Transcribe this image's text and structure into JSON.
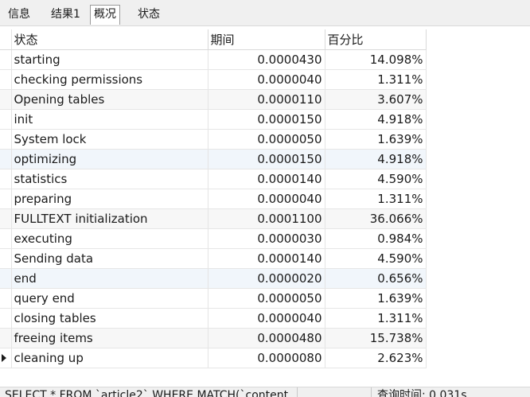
{
  "tabs": [
    {
      "label": "信息",
      "active": false
    },
    {
      "label": "结果1",
      "active": false
    },
    {
      "label": "概况",
      "active": true
    },
    {
      "label": "状态",
      "active": false
    }
  ],
  "table": {
    "columns": [
      "状态",
      "期间",
      "百分比"
    ],
    "rows": [
      {
        "status": "starting",
        "duration": "0.0000430",
        "percent": "14.098%"
      },
      {
        "status": "checking permissions",
        "duration": "0.0000040",
        "percent": "1.311%"
      },
      {
        "status": "Opening tables",
        "duration": "0.0000110",
        "percent": "3.607%"
      },
      {
        "status": "init",
        "duration": "0.0000150",
        "percent": "4.918%"
      },
      {
        "status": "System lock",
        "duration": "0.0000050",
        "percent": "1.639%"
      },
      {
        "status": "optimizing",
        "duration": "0.0000150",
        "percent": "4.918%"
      },
      {
        "status": "statistics",
        "duration": "0.0000140",
        "percent": "4.590%"
      },
      {
        "status": "preparing",
        "duration": "0.0000040",
        "percent": "1.311%"
      },
      {
        "status": "FULLTEXT initialization",
        "duration": "0.0001100",
        "percent": "36.066%"
      },
      {
        "status": "executing",
        "duration": "0.0000030",
        "percent": "0.984%"
      },
      {
        "status": "Sending data",
        "duration": "0.0000140",
        "percent": "4.590%"
      },
      {
        "status": "end",
        "duration": "0.0000020",
        "percent": "0.656%"
      },
      {
        "status": "query end",
        "duration": "0.0000050",
        "percent": "1.639%"
      },
      {
        "status": "closing tables",
        "duration": "0.0000040",
        "percent": "1.311%"
      },
      {
        "status": "freeing items",
        "duration": "0.0000480",
        "percent": "15.738%"
      },
      {
        "status": "cleaning up",
        "duration": "0.0000080",
        "percent": "2.623%"
      }
    ],
    "current_row": 15
  },
  "statusbar": {
    "query": "SELECT * FROM `article2` WHERE MATCH(`content",
    "query_time": "查询时间: 0.031s"
  }
}
